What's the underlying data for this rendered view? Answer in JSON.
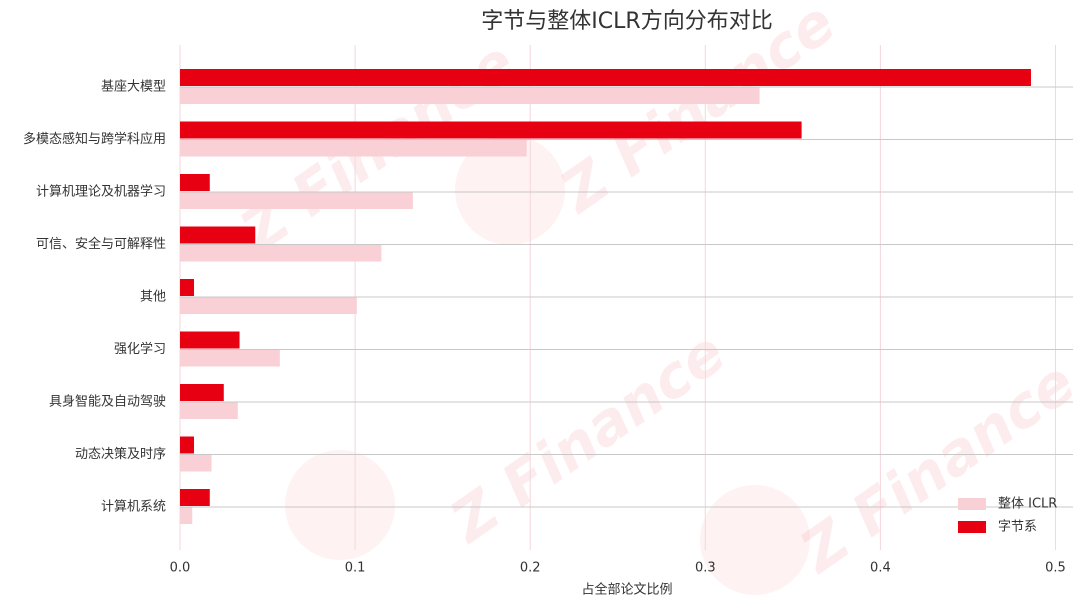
{
  "chart_data": {
    "type": "hbar",
    "title": "字节与整体ICLR方向分布对比",
    "xlabel": "占全部论文比例",
    "watermark": "Z Finance",
    "categories": [
      "基座大模型",
      "多模态感知与跨学科应用",
      "计算机理论及机器学习",
      "可信、安全与可解释性",
      "其他",
      "强化学习",
      "具身智能及自动驾驶",
      "动态决策及时序",
      "计算机系统"
    ],
    "series": [
      {
        "name": "字节系",
        "color": "#e60012",
        "values": [
          0.486,
          0.355,
          0.017,
          0.043,
          0.008,
          0.034,
          0.025,
          0.008,
          0.017
        ]
      },
      {
        "name": "整体 ICLR",
        "color": "#f8d0d6",
        "values": [
          0.331,
          0.198,
          0.133,
          0.115,
          0.101,
          0.057,
          0.033,
          0.018,
          0.007
        ]
      }
    ],
    "xlim": [
      0,
      0.51
    ],
    "xticks": [
      {
        "value": 0,
        "label": "0.0"
      },
      0.1,
      0.2,
      0.3,
      0.4,
      0.5
    ],
    "grid": true,
    "legend": "lower right"
  }
}
